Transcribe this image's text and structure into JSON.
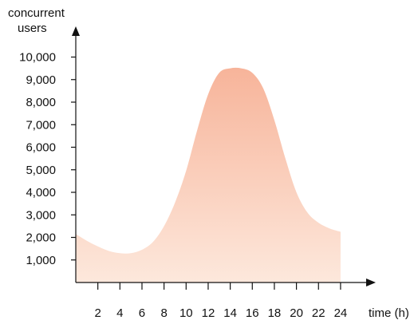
{
  "chart_data": {
    "type": "area",
    "title": "",
    "ylabel_lines": [
      "concurrent",
      "users"
    ],
    "xlabel": "time (h)",
    "xlim": [
      0,
      24
    ],
    "ylim": [
      0,
      10000
    ],
    "x_ticks": [
      2,
      4,
      6,
      8,
      10,
      12,
      14,
      16,
      18,
      20,
      22,
      24
    ],
    "x_tick_labels": [
      "2",
      "4",
      "6",
      "8",
      "10",
      "12",
      "14",
      "16",
      "18",
      "20",
      "22",
      "24"
    ],
    "y_ticks": [
      1000,
      2000,
      3000,
      4000,
      5000,
      6000,
      7000,
      8000,
      9000,
      10000
    ],
    "y_tick_labels": [
      "1,000",
      "2,000",
      "3,000",
      "4,000",
      "5,000",
      "6,000",
      "7,000",
      "8,000",
      "9,000",
      "10,000"
    ],
    "grid": false,
    "legend": "none",
    "fill_gradient": {
      "top": "#f7b49a",
      "bottom": "#fde8dc"
    },
    "axis_color": "#111111",
    "series": [
      {
        "x": [
          0,
          1,
          2,
          3,
          4,
          5,
          6,
          7,
          8,
          9,
          10,
          11,
          12,
          13,
          14,
          15,
          16,
          17,
          18,
          19,
          20,
          21,
          22,
          23,
          24
        ],
        "y": [
          2150,
          1850,
          1600,
          1400,
          1300,
          1300,
          1450,
          1800,
          2500,
          3550,
          4950,
          6750,
          8350,
          9300,
          9500,
          9500,
          9300,
          8600,
          7200,
          5500,
          4000,
          3100,
          2650,
          2400,
          2250
        ]
      }
    ]
  }
}
